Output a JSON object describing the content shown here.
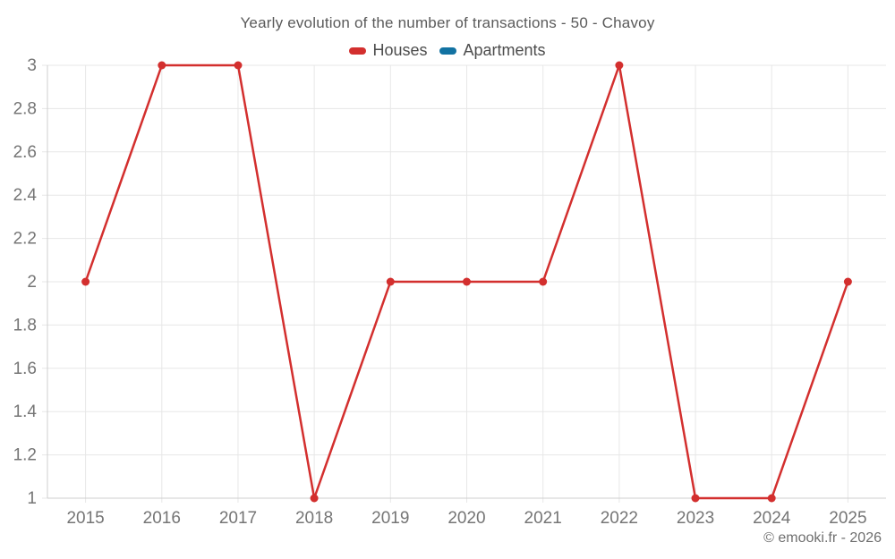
{
  "chart": {
    "copyright": "© emooki.fr - 2026"
  },
  "chart_data": {
    "type": "line",
    "title": "Yearly evolution of the number of transactions - 50 - Chavoy",
    "categories": [
      "2015",
      "2016",
      "2017",
      "2018",
      "2019",
      "2020",
      "2021",
      "2022",
      "2023",
      "2024",
      "2025"
    ],
    "series": [
      {
        "name": "Houses",
        "color": "#d32f2e",
        "values": [
          2,
          3,
          3,
          1,
          2,
          2,
          2,
          3,
          1,
          1,
          2
        ]
      },
      {
        "name": "Apartments",
        "color": "#1272a2",
        "values": []
      }
    ],
    "ylim": [
      1,
      3
    ],
    "ytick_step": 0.2,
    "ytick_labels": [
      "1",
      "1.2",
      "1.4",
      "1.6",
      "1.8",
      "2",
      "2.2",
      "2.4",
      "2.6",
      "2.8",
      "3"
    ],
    "grid": true,
    "legend_position": "top",
    "marker_radius": 4.5,
    "colors": {
      "grid": "#e7e7e7",
      "axis": "#cfcfcf",
      "tick_text": "#757575",
      "background": "#ffffff"
    }
  }
}
